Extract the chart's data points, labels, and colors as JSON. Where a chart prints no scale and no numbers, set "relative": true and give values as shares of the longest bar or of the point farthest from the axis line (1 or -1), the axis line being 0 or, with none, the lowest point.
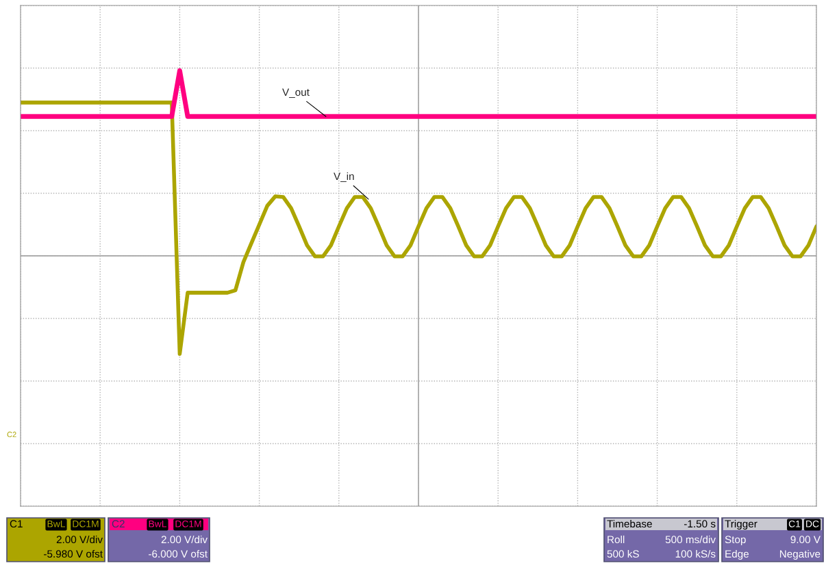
{
  "chart_data": {
    "type": "line",
    "relative": true,
    "grid": true,
    "tick_labels": false,
    "legend": false,
    "marker": "none",
    "line_style": "solid",
    "categories": [
      null,
      null,
      null,
      null,
      null,
      null,
      null,
      null,
      null,
      null,
      null,
      null,
      null,
      null,
      null,
      null,
      null,
      null,
      null,
      null,
      null,
      null,
      null,
      null,
      null,
      null,
      null,
      null,
      null,
      null,
      null,
      null,
      null,
      null,
      null,
      null,
      null,
      null,
      null,
      null,
      null,
      null,
      null,
      null,
      null,
      null,
      null,
      null,
      null,
      null,
      null,
      null,
      null,
      null,
      null,
      null,
      null,
      null,
      null,
      null,
      null,
      null,
      null,
      null,
      null,
      null,
      null,
      null,
      null,
      null,
      null,
      null,
      null,
      null,
      null,
      null,
      null,
      null,
      null,
      null,
      null,
      null,
      null,
      null,
      null,
      null,
      null,
      null,
      null,
      null,
      null,
      null,
      null,
      null,
      null,
      null,
      null,
      null,
      null,
      null,
      null
    ],
    "series": [
      {
        "name": "V_in",
        "color": "#aca500",
        "values": [
          0.828,
          0.828,
          0.828,
          0.828,
          0.828,
          0.828,
          0.828,
          0.828,
          0.828,
          0.828,
          0.828,
          0.828,
          0.828,
          0.828,
          0.828,
          0.828,
          0.828,
          0.828,
          0.828,
          0.828,
          -0.53,
          -0.199,
          -0.199,
          -0.199,
          -0.199,
          -0.199,
          -0.199,
          -0.186,
          -0.034,
          0.068,
          0.169,
          0.27,
          0.321,
          0.318,
          0.257,
          0.159,
          0.057,
          -0.003,
          -0.003,
          0.057,
          0.159,
          0.257,
          0.318,
          0.318,
          0.257,
          0.159,
          0.057,
          -0.003,
          -0.003,
          0.057,
          0.159,
          0.257,
          0.318,
          0.318,
          0.257,
          0.159,
          0.057,
          -0.003,
          -0.003,
          0.057,
          0.159,
          0.257,
          0.318,
          0.318,
          0.257,
          0.159,
          0.057,
          -0.003,
          -0.003,
          0.057,
          0.159,
          0.257,
          0.318,
          0.318,
          0.257,
          0.159,
          0.057,
          -0.003,
          -0.003,
          0.057,
          0.159,
          0.257,
          0.318,
          0.318,
          0.257,
          0.159,
          0.057,
          -0.003,
          -0.003,
          0.057,
          0.159,
          0.257,
          0.318,
          0.318,
          0.257,
          0.159,
          0.057,
          -0.003,
          -0.003,
          0.057,
          0.159
        ]
      },
      {
        "name": "V_out",
        "color": "#ff0080",
        "values": [
          0.753,
          0.753,
          0.753,
          0.753,
          0.753,
          0.753,
          0.753,
          0.753,
          0.753,
          0.753,
          0.753,
          0.753,
          0.753,
          0.753,
          0.753,
          0.753,
          0.753,
          0.753,
          0.753,
          0.753,
          1,
          0.753,
          0.753,
          0.753,
          0.753,
          0.753,
          0.753,
          0.753,
          0.753,
          0.753,
          0.753,
          0.753,
          0.753,
          0.753,
          0.753,
          0.753,
          0.753,
          0.753,
          0.753,
          0.753,
          0.753,
          0.753,
          0.753,
          0.753,
          0.753,
          0.753,
          0.753,
          0.753,
          0.753,
          0.753,
          0.753,
          0.753,
          0.753,
          0.753,
          0.753,
          0.753,
          0.753,
          0.753,
          0.753,
          0.753,
          0.753,
          0.753,
          0.753,
          0.753,
          0.753,
          0.753,
          0.753,
          0.753,
          0.753,
          0.753,
          0.753,
          0.753,
          0.753,
          0.753,
          0.753,
          0.753,
          0.753,
          0.753,
          0.753,
          0.753,
          0.753,
          0.753,
          0.753,
          0.753,
          0.753,
          0.753,
          0.753,
          0.753,
          0.753,
          0.753,
          0.753,
          0.753,
          0.753,
          0.753,
          0.753,
          0.753,
          0.753,
          0.753,
          0.753,
          0.753,
          0.753
        ]
      }
    ],
    "annotations": [
      "C1",
      "BwL",
      "DC1M",
      "2.00 V/div",
      "-5.980 V ofst",
      "C2",
      "BwL",
      "DC1M",
      "2.00 V/div",
      "-6.000 V ofst",
      "Timebase",
      "-1.50 s",
      "Roll",
      "500 ms/div",
      "500 kS",
      "100 kS/s",
      "Trigger",
      "C1",
      "DC",
      "Stop",
      "9.00 V",
      "Edge",
      "Negative",
      "C2"
    ]
  }
}
